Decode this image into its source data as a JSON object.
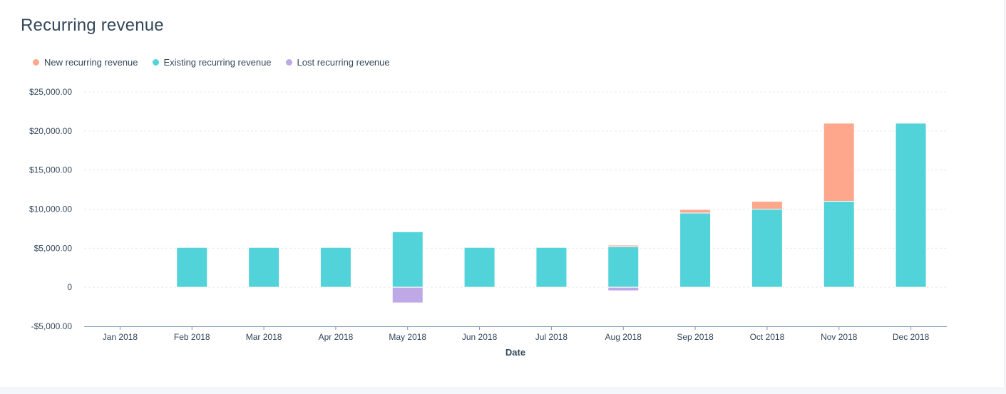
{
  "title": "Recurring revenue",
  "legend": [
    {
      "label": "New recurring revenue",
      "color": "#ffa78c"
    },
    {
      "label": "Existing recurring revenue",
      "color": "#51d3d9"
    },
    {
      "label": "Lost recurring revenue",
      "color": "#bea8e6"
    }
  ],
  "chart_data": {
    "type": "bar",
    "stacked": true,
    "xlabel": "Date",
    "ylabel": "",
    "ylim": [
      -5000,
      25000
    ],
    "yticks": [
      -5000,
      0,
      5000,
      10000,
      15000,
      20000,
      25000
    ],
    "ytick_labels": [
      "-$5,000.00",
      "0",
      "$5,000.00",
      "$10,000.00",
      "$15,000.00",
      "$20,000.00",
      "$25,000.00"
    ],
    "grid": true,
    "legend_position": "top-left",
    "categories": [
      "Jan 2018",
      "Feb 2018",
      "Mar 2018",
      "Apr 2018",
      "May 2018",
      "Jun 2018",
      "Jul 2018",
      "Aug 2018",
      "Sep 2018",
      "Oct 2018",
      "Nov 2018",
      "Dec 2018"
    ],
    "series": [
      {
        "name": "Existing recurring revenue",
        "color": "#51d3d9",
        "values": [
          0,
          5100,
          5100,
          5100,
          7100,
          5100,
          5100,
          5200,
          9500,
          10000,
          11000,
          21000
        ]
      },
      {
        "name": "New recurring revenue",
        "color": "#ffa78c",
        "values": [
          0,
          0,
          0,
          0,
          0,
          0,
          0,
          200,
          450,
          1000,
          10000,
          0
        ]
      },
      {
        "name": "Lost recurring revenue",
        "color": "#bea8e6",
        "values": [
          0,
          0,
          0,
          0,
          -2000,
          0,
          0,
          -450,
          0,
          0,
          0,
          0
        ]
      }
    ]
  }
}
